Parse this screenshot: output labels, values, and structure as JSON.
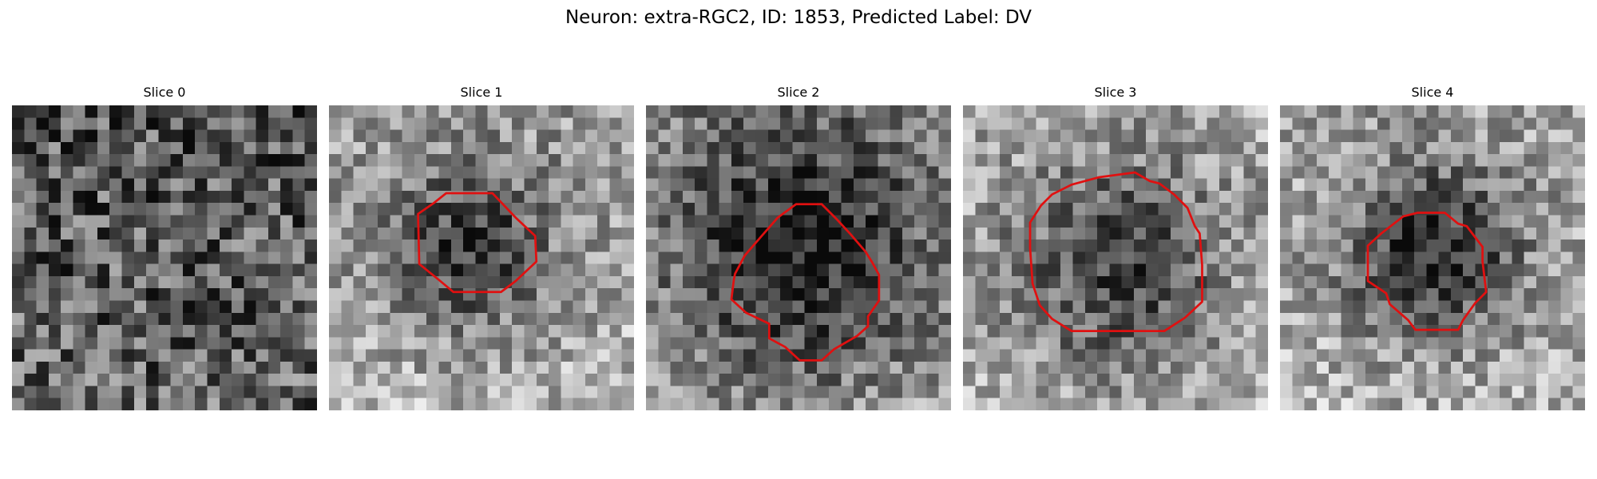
{
  "figure": {
    "title": "Neuron: extra-RGC2, ID: 1853, Predicted Label: DV",
    "grid_size": 25,
    "outline_color": "#e01010"
  },
  "panels": [
    {
      "title": "Slice 0",
      "seed": 11,
      "blob": null,
      "background": {
        "base": 0.36,
        "gradient": 0.06,
        "noise": 0.32
      },
      "outline": null
    },
    {
      "title": "Slice 1",
      "seed": 23,
      "blob": {
        "cx": 11.6,
        "cy": 11.8,
        "r": 5.0,
        "depth": 0.42
      },
      "background": {
        "base": 0.66,
        "gradient": 0.1,
        "noise": 0.24
      },
      "outline": [
        [
          9.6,
          7.2
        ],
        [
          13.4,
          7.2
        ],
        [
          15.3,
          9.2
        ],
        [
          16.9,
          10.7
        ],
        [
          17.0,
          12.8
        ],
        [
          15.3,
          14.4
        ],
        [
          14.1,
          15.3
        ],
        [
          10.2,
          15.3
        ],
        [
          9.0,
          14.3
        ],
        [
          7.4,
          13.0
        ],
        [
          7.3,
          8.9
        ],
        [
          8.6,
          8.0
        ]
      ]
    },
    {
      "title": "Slice 2",
      "seed": 37,
      "blob": {
        "cx": 12.8,
        "cy": 12.0,
        "r": 7.6,
        "depth": 0.48
      },
      "background": {
        "base": 0.6,
        "gradient": 0.1,
        "noise": 0.24
      },
      "outline": [
        [
          10.8,
          9.2
        ],
        [
          12.3,
          8.1
        ],
        [
          14.4,
          8.1
        ],
        [
          15.6,
          9.3
        ],
        [
          16.8,
          10.6
        ],
        [
          18.0,
          12.0
        ],
        [
          18.5,
          12.8
        ],
        [
          19.1,
          13.9
        ],
        [
          19.1,
          16.0
        ],
        [
          18.2,
          17.3
        ],
        [
          18.2,
          18.1
        ],
        [
          17.3,
          18.9
        ],
        [
          15.4,
          20.0
        ],
        [
          14.4,
          20.9
        ],
        [
          12.6,
          20.9
        ],
        [
          11.4,
          19.8
        ],
        [
          10.1,
          19.1
        ],
        [
          10.1,
          17.9
        ],
        [
          8.2,
          17.0
        ],
        [
          7.0,
          15.9
        ],
        [
          7.2,
          14.3
        ],
        [
          7.3,
          13.8
        ],
        [
          8.1,
          12.3
        ],
        [
          9.4,
          10.8
        ]
      ]
    },
    {
      "title": "Slice 3",
      "seed": 51,
      "blob": {
        "cx": 12.7,
        "cy": 13.8,
        "r": 6.6,
        "depth": 0.44
      },
      "background": {
        "base": 0.7,
        "gradient": 0.08,
        "noise": 0.24
      },
      "outline": [
        [
          8.9,
          6.5
        ],
        [
          11.1,
          5.9
        ],
        [
          14.1,
          5.5
        ],
        [
          15.3,
          6.2
        ],
        [
          16.1,
          6.4
        ],
        [
          17.3,
          7.3
        ],
        [
          18.4,
          8.4
        ],
        [
          19.0,
          9.9
        ],
        [
          19.4,
          10.5
        ],
        [
          19.6,
          13.1
        ],
        [
          19.6,
          15.0
        ],
        [
          19.6,
          16.1
        ],
        [
          18.2,
          17.4
        ],
        [
          16.5,
          18.5
        ],
        [
          8.9,
          18.5
        ],
        [
          7.3,
          17.5
        ],
        [
          6.3,
          16.4
        ],
        [
          5.7,
          14.6
        ],
        [
          5.5,
          11.7
        ],
        [
          5.5,
          9.6
        ],
        [
          6.4,
          8.2
        ],
        [
          7.3,
          7.3
        ]
      ]
    },
    {
      "title": "Slice 4",
      "seed": 67,
      "blob": {
        "cx": 12.5,
        "cy": 12.0,
        "r": 5.2,
        "depth": 0.52
      },
      "background": {
        "base": 0.68,
        "gradient": 0.06,
        "noise": 0.24
      },
      "outline": [
        [
          10.1,
          9.1
        ],
        [
          11.3,
          8.8
        ],
        [
          13.5,
          8.8
        ],
        [
          14.6,
          9.7
        ],
        [
          15.3,
          9.9
        ],
        [
          16.6,
          11.6
        ],
        [
          16.6,
          12.8
        ],
        [
          16.9,
          15.3
        ],
        [
          16.0,
          16.2
        ],
        [
          15.0,
          17.6
        ],
        [
          14.6,
          18.4
        ],
        [
          11.1,
          18.4
        ],
        [
          10.5,
          17.6
        ],
        [
          9.0,
          16.3
        ],
        [
          8.7,
          15.4
        ],
        [
          7.2,
          14.4
        ],
        [
          7.2,
          11.5
        ],
        [
          8.3,
          10.5
        ]
      ]
    }
  ]
}
